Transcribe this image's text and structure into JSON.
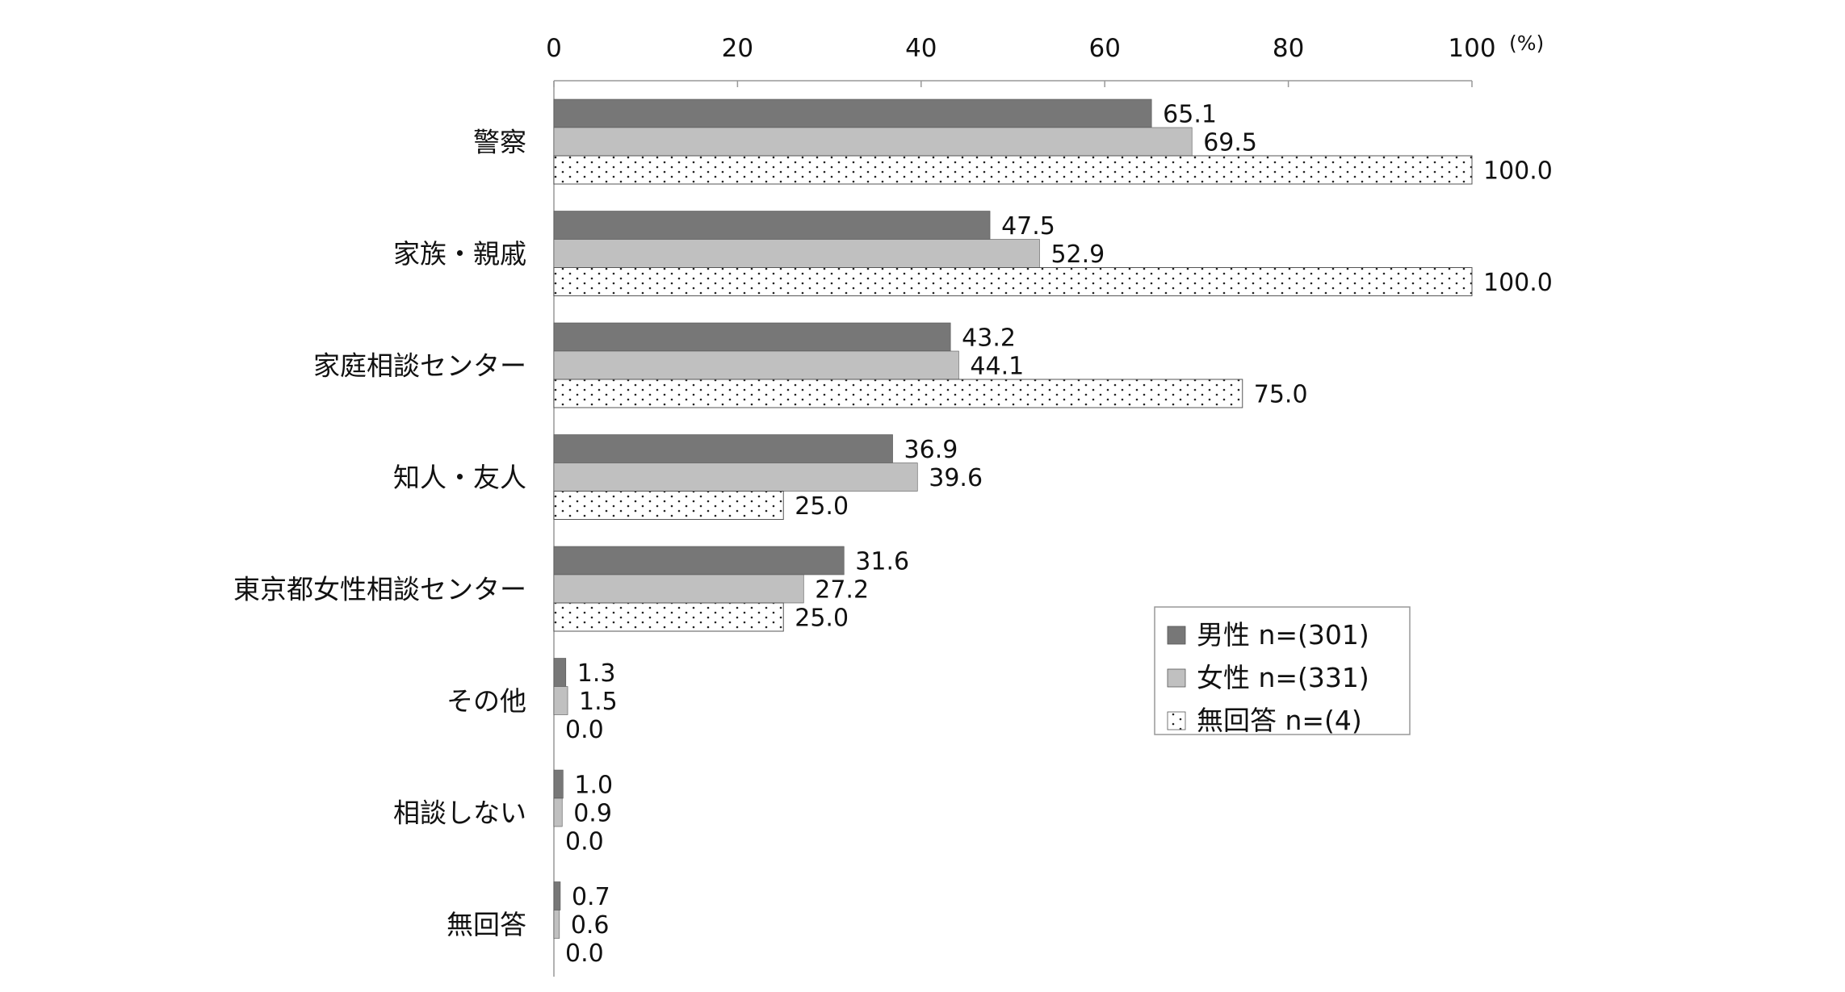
{
  "chart_data": {
    "type": "bar",
    "orientation": "horizontal",
    "x_unit": "(%)",
    "xlim": [
      0,
      100
    ],
    "x_ticks": [
      "0",
      "20",
      "40",
      "60",
      "80",
      "100"
    ],
    "categories": [
      "警察",
      "家族・親戚",
      "家庭相談センター",
      "知人・友人",
      "東京都女性相談センター",
      "その他",
      "相談しない",
      "無回答"
    ],
    "series": [
      {
        "name": "男性 n=(301)",
        "color": "#777777",
        "pattern": "solid",
        "values": [
          65.1,
          47.5,
          43.2,
          36.9,
          31.6,
          1.3,
          1.0,
          0.7
        ],
        "labels": [
          "65.1",
          "47.5",
          "43.2",
          "36.9",
          "31.6",
          "1.3",
          "1.0",
          "0.7"
        ]
      },
      {
        "name": "女性 n=(331)",
        "color": "#c0c0c0",
        "pattern": "solid",
        "values": [
          69.5,
          52.9,
          44.1,
          39.6,
          27.2,
          1.5,
          0.9,
          0.6
        ],
        "labels": [
          "69.5",
          "52.9",
          "44.1",
          "39.6",
          "27.2",
          "1.5",
          "0.9",
          "0.6"
        ]
      },
      {
        "name": "無回答 n=(4)",
        "color": "#ffffff",
        "pattern": "dots",
        "values": [
          100.0,
          100.0,
          75.0,
          25.0,
          25.0,
          0.0,
          0.0,
          0.0
        ],
        "labels": [
          "100.0",
          "100.0",
          "75.0",
          "25.0",
          "25.0",
          "0.0",
          "0.0",
          "0.0"
        ]
      }
    ],
    "legend": {
      "position": "lower-right",
      "entries": [
        "男性 n=(301)",
        "女性 n=(331)",
        "無回答 n=(4)"
      ]
    },
    "grid": false
  }
}
